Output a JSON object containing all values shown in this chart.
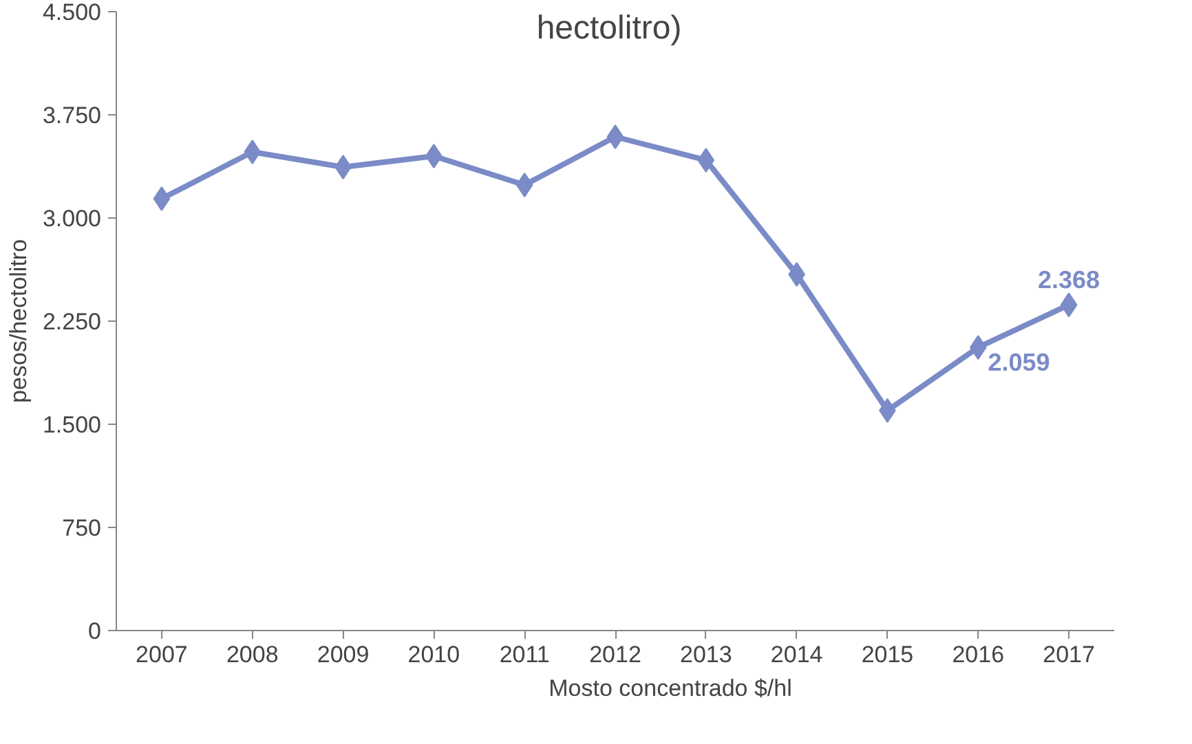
{
  "chart_data": {
    "type": "line",
    "title": "hectolitro)",
    "ylabel": "pesos/hectolitro",
    "categories": [
      "2007",
      "2008",
      "2009",
      "2010",
      "2011",
      "2012",
      "2013",
      "2014",
      "2015",
      "2016",
      "2017"
    ],
    "series": [
      {
        "name": "Mosto concentrado $/hl",
        "color": "#7b8bc7",
        "values": [
          3140,
          3480,
          3370,
          3450,
          3240,
          3590,
          3420,
          2590,
          1600,
          2059,
          2368
        ],
        "value_labels": [
          null,
          null,
          null,
          null,
          null,
          null,
          null,
          null,
          null,
          "2.059",
          "2.368"
        ]
      }
    ],
    "ylim": [
      0,
      4500
    ],
    "yticks": [
      {
        "value": 0,
        "label": "0"
      },
      {
        "value": 750,
        "label": "750"
      },
      {
        "value": 1500,
        "label": "1.500"
      },
      {
        "value": 2250,
        "label": "2.250"
      },
      {
        "value": 3000,
        "label": "3.000"
      },
      {
        "value": 3750,
        "label": "3.750"
      },
      {
        "value": 4500,
        "label": "4.500"
      }
    ],
    "grid": false,
    "legend": "bottom",
    "marker": "diamond",
    "line_style": "solid"
  }
}
